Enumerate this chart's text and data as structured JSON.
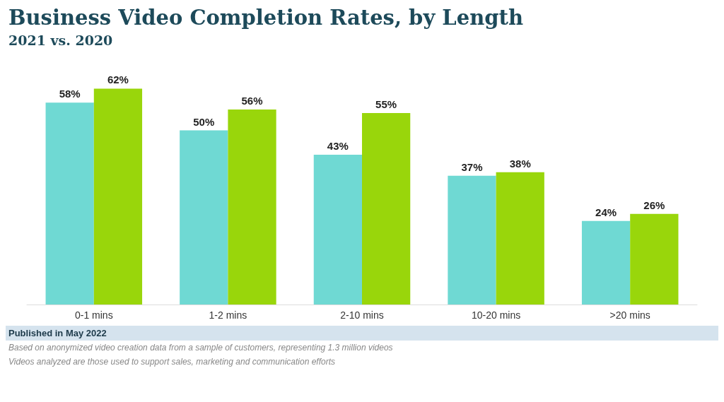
{
  "chart_data": {
    "type": "bar",
    "title": "Business Video Completion Rates, by Length",
    "subtitle": "2021 vs. 2020",
    "categories": [
      "0-1 mins",
      "1-2 mins",
      "2-10 mins",
      "10-20 mins",
      ">20 mins"
    ],
    "series": [
      {
        "color": "#6fd9d3",
        "values": [
          58,
          50,
          43,
          37,
          24
        ],
        "value_labels": [
          "58%",
          "50%",
          "43%",
          "37%",
          "24%"
        ]
      },
      {
        "color": "#99d60b",
        "values": [
          62,
          56,
          55,
          38,
          26
        ],
        "value_labels": [
          "62%",
          "56%",
          "55%",
          "38%",
          "26%"
        ]
      }
    ],
    "annotations": [
      "Published in May 2022",
      "Based on anonymized video creation data from a sample of customers, representing 1.3 million videos",
      "Videos analyzed are those used to support sales, marketing and communication efforts"
    ]
  }
}
